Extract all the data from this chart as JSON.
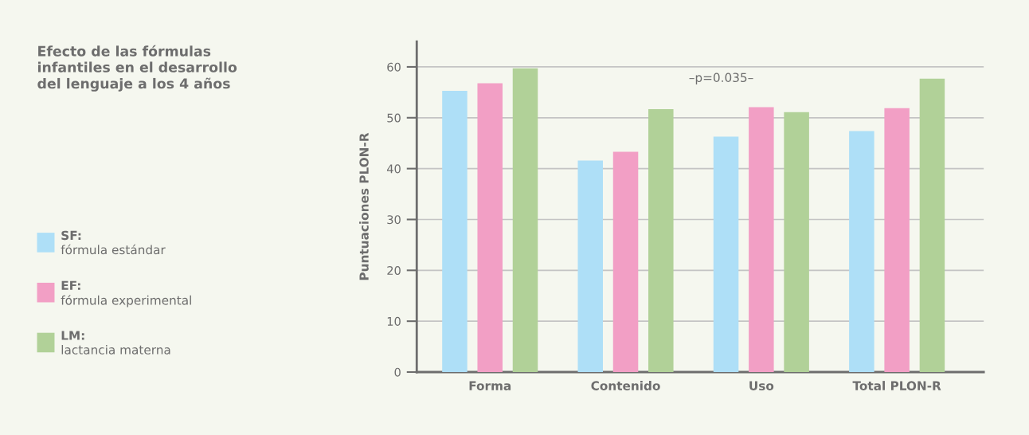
{
  "chart_data": {
    "type": "bar",
    "title": "Efecto de las fórmulas\ninfantiles en el desarrollo\ndel lenguaje a los 4 años",
    "ylabel": "Puntuaciones PLON-R",
    "categories": [
      "Forma",
      "Contenido",
      "Uso",
      "Total PLON-R"
    ],
    "series": [
      {
        "name": "SF:\nfórmula estándar",
        "color": "#aedff7",
        "values": [
          55.3,
          41.6,
          46.3,
          47.4
        ]
      },
      {
        "name": "EF:\nfórmula experimental",
        "color": "#f29fc5",
        "values": [
          56.8,
          43.3,
          52.1,
          51.9
        ]
      },
      {
        "name": "LM:\nlactancia materna",
        "color": "#b1d198",
        "values": [
          59.7,
          51.7,
          51.1,
          57.7
        ]
      }
    ],
    "ylim": [
      0,
      65
    ],
    "yticks": [
      0,
      10,
      20,
      30,
      40,
      50,
      60
    ],
    "grid": "y",
    "legend": "left",
    "annotations": [
      "–p=0.035–"
    ]
  }
}
